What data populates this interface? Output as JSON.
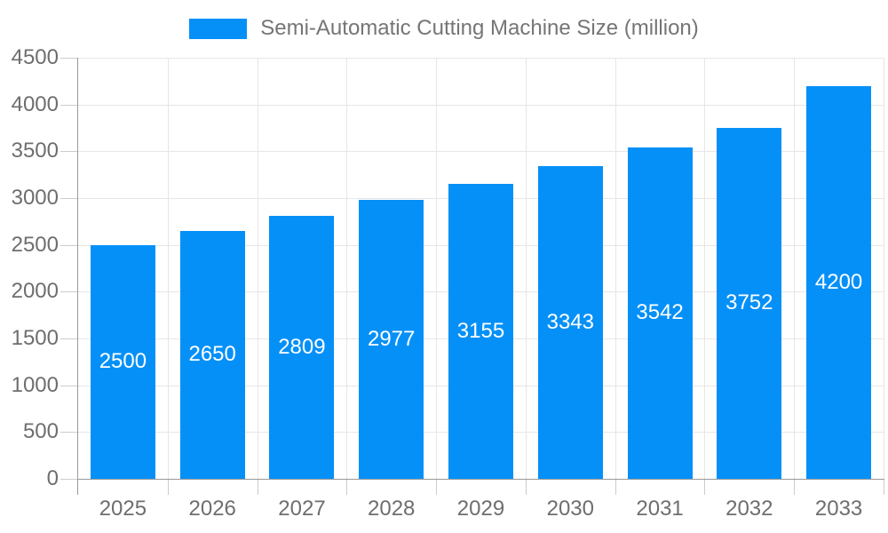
{
  "chart_data": {
    "type": "bar",
    "title": "Semi-Automatic Cutting Machine Size (million)",
    "series_name": "Semi-Automatic Cutting Machine Size (million)",
    "categories": [
      "2025",
      "2026",
      "2027",
      "2028",
      "2029",
      "2030",
      "2031",
      "2032",
      "2033"
    ],
    "values": [
      2500,
      2650,
      2809,
      2977,
      3155,
      3343,
      3542,
      3752,
      4200
    ],
    "value_labels": [
      "2500",
      "2650",
      "2809",
      "2977",
      "3155",
      "3343",
      "3542",
      "3752",
      "4200"
    ],
    "y_tick_labels": [
      "0",
      "500",
      "1000",
      "1500",
      "2000",
      "2500",
      "3000",
      "3500",
      "4000",
      "4500"
    ],
    "xlabel": "",
    "ylabel": "",
    "ylim": [
      0,
      4500
    ],
    "ytick_step": 500,
    "grid": true,
    "legend_position": "top",
    "colors": {
      "bar": "#0590F8",
      "bar_label_text": "#ffffff",
      "axis_text": "#6e6e6e",
      "legend_text": "#757575",
      "gridline": "#e6e6e6",
      "axis_line": "#999999",
      "tick": "#cccccc",
      "background": "#ffffff"
    }
  }
}
